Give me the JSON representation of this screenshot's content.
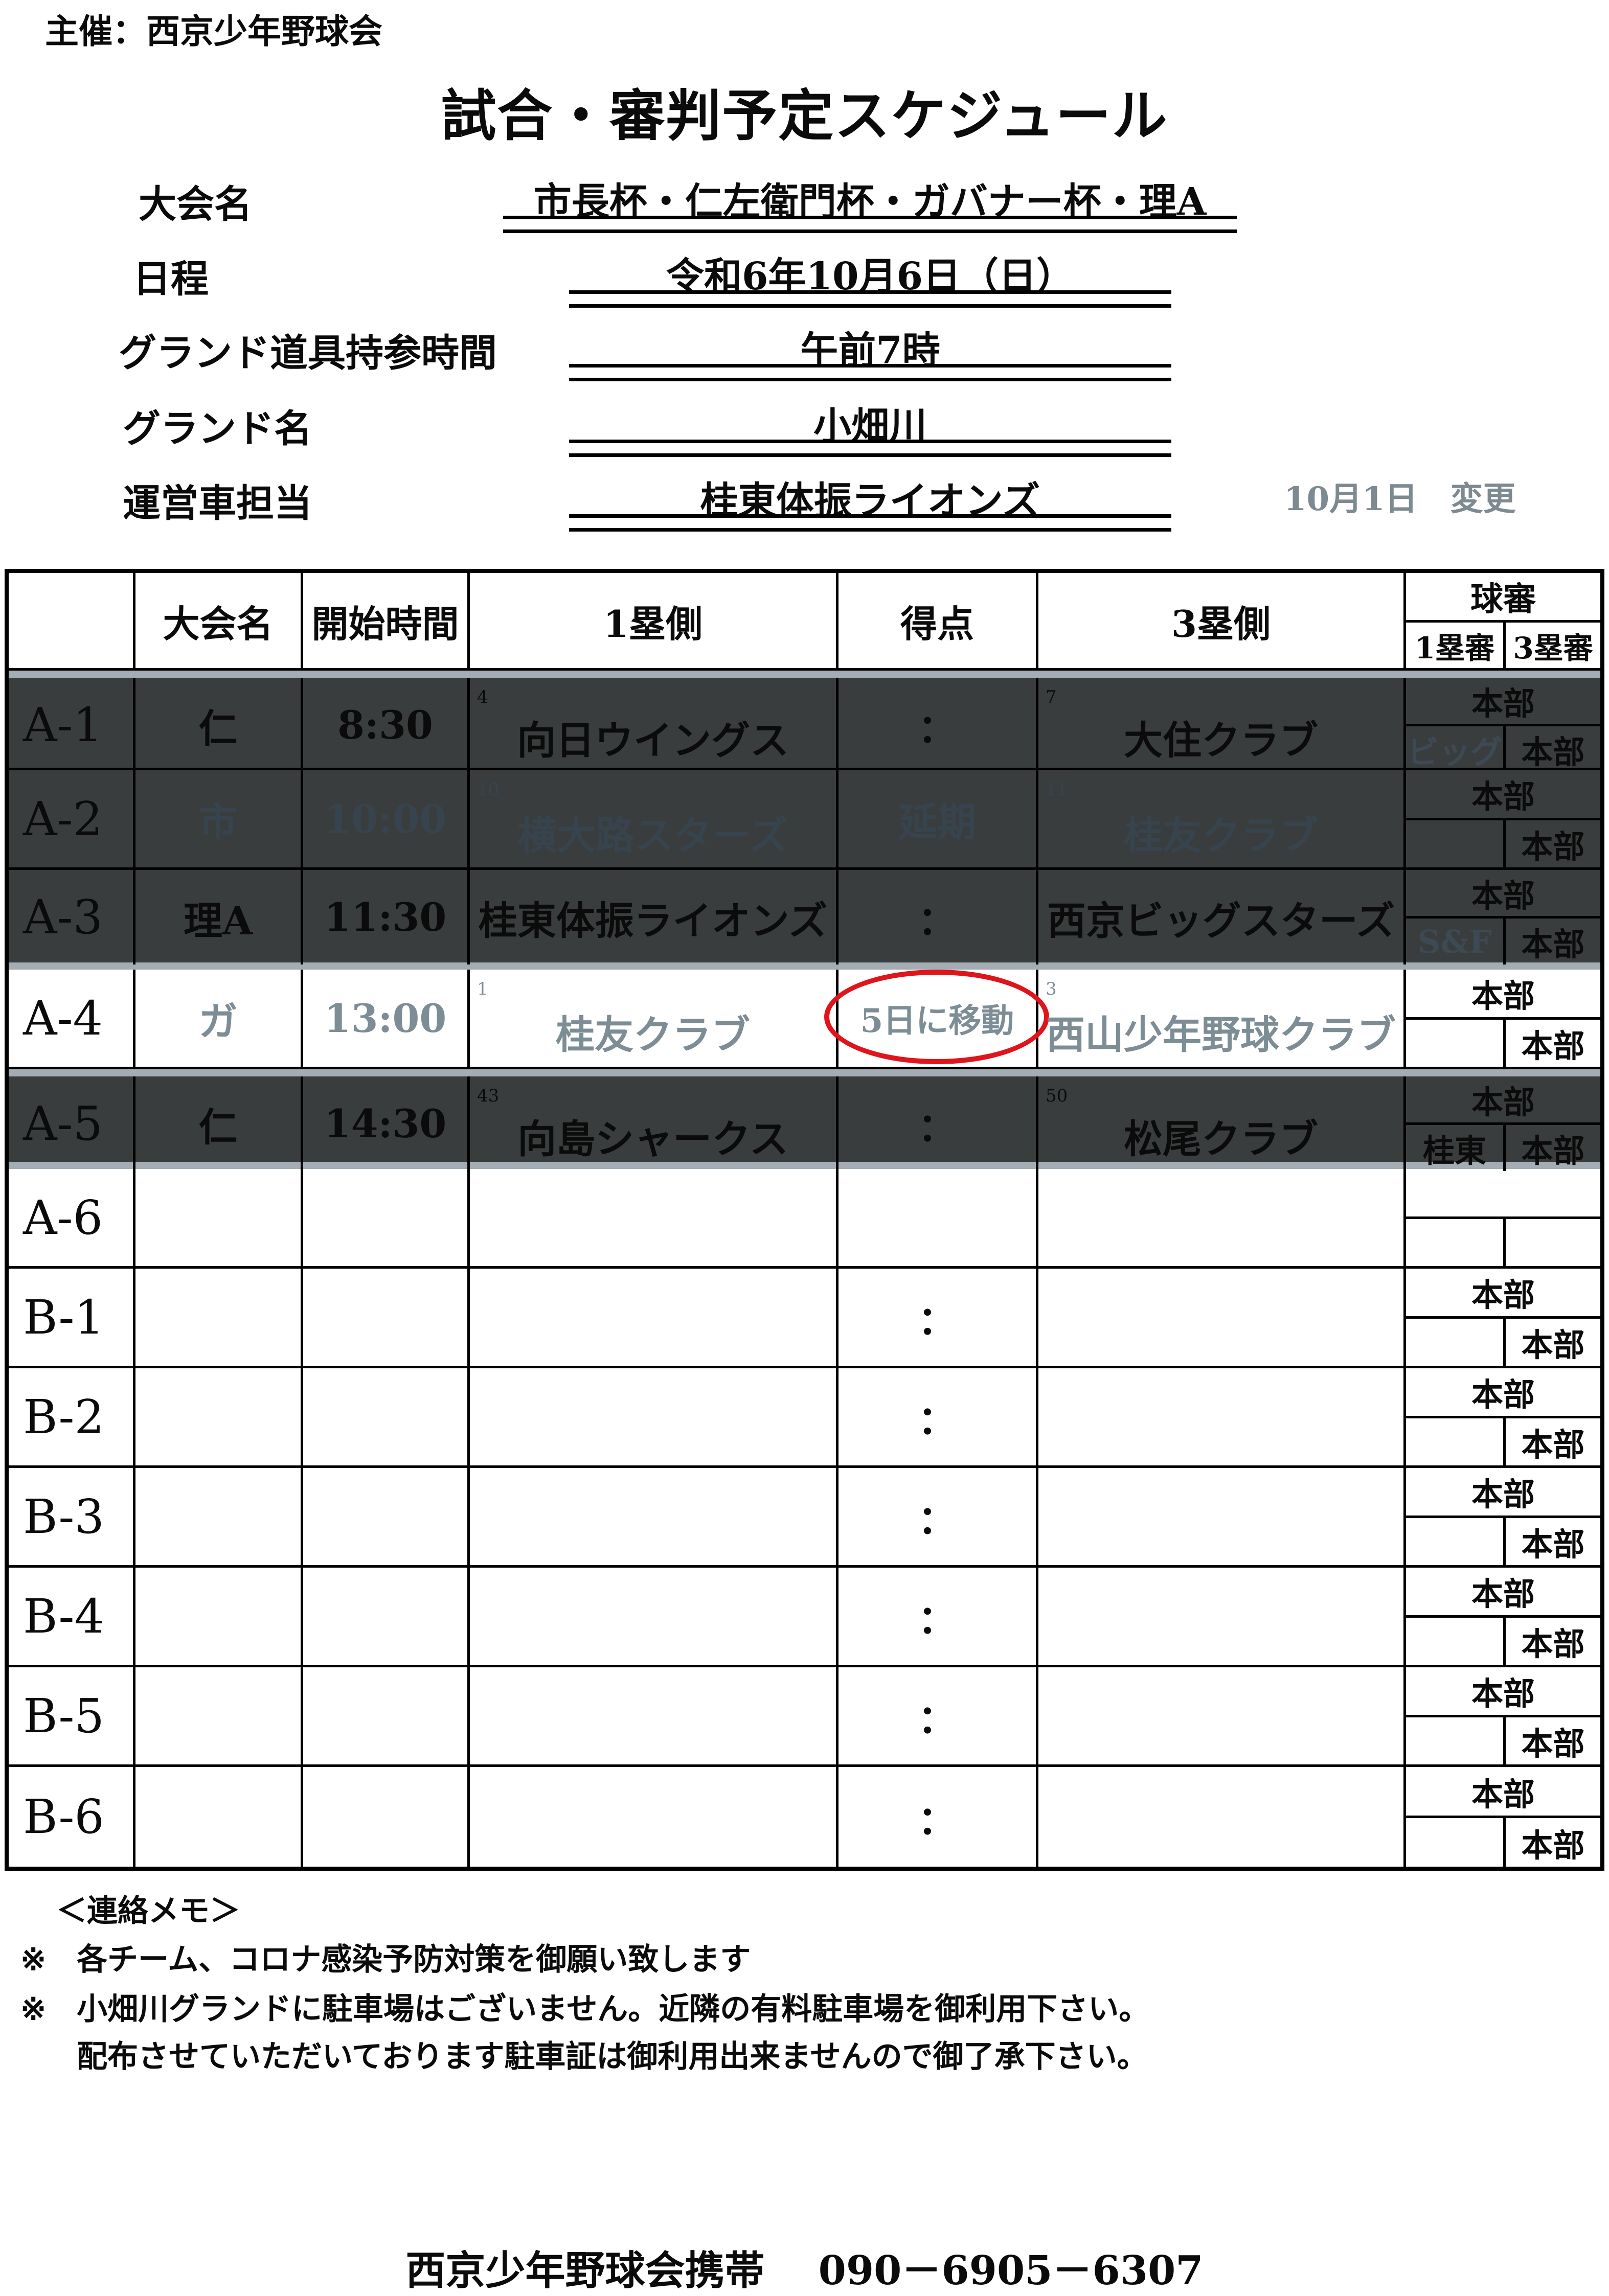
{
  "organizer": "主催：西京少年野球会",
  "title": "試合・審判予定スケジュール",
  "info": [
    {
      "label": "大会名",
      "value": "市長杯・仁左衛門杯・ガバナー杯・理A"
    },
    {
      "label": "日程",
      "value": "令和6年10月6日（日）"
    },
    {
      "label": "グランド道具持参時間",
      "value": "午前7時"
    },
    {
      "label": "グランド名",
      "value": "小畑川"
    },
    {
      "label": "運営車担当",
      "value": "桂東体振ライオンズ"
    }
  ],
  "change_note": "10月1日　変更",
  "table": {
    "headers": {
      "id": "",
      "tournament": "大会名",
      "start_time": "開始時間",
      "first_base_side": "1塁側",
      "score": "得点",
      "third_base_side": "3塁側",
      "umpire": "球審",
      "umpire_1b": "1塁審",
      "umpire_3b": "3塁審"
    },
    "rows": [
      {
        "id": "A-1",
        "tournament": "仁",
        "time": "8:30",
        "team1_seed": "4",
        "team1": "向日ウイングス",
        "score": "：",
        "team3_seed": "7",
        "team3": "大住クラブ",
        "ump_main": "本部",
        "ump_1b": "ビッグ",
        "ump_3b": "本部",
        "status": "dark"
      },
      {
        "id": "A-2",
        "tournament": "市",
        "time": "10:00",
        "team1_seed": "10",
        "team1": "横大路スターズ",
        "score": "延期",
        "team3_seed": "11",
        "team3": "桂友クラブ",
        "ump_main": "本部",
        "ump_1b": "",
        "ump_3b": "本部",
        "status": "dark-postponed"
      },
      {
        "id": "A-3",
        "tournament": "理A",
        "time": "11:30",
        "team1_seed": "",
        "team1": "桂東体振ライオンズ",
        "score": "：",
        "team3_seed": "",
        "team3": "西京ビッグスターズ",
        "ump_main": "本部",
        "ump_1b": "S&F",
        "ump_3b": "本部",
        "status": "dark"
      },
      {
        "id": "A-4",
        "tournament": "ガ",
        "time": "13:00",
        "team1_seed": "1",
        "team1": "桂友クラブ",
        "score": "5日に移動",
        "team3_seed": "3",
        "team3": "西山少年野球クラブ",
        "ump_main": "本部",
        "ump_1b": "",
        "ump_3b": "本部",
        "status": "moved"
      },
      {
        "id": "A-5",
        "tournament": "仁",
        "time": "14:30",
        "team1_seed": "43",
        "team1": "向島シャークス",
        "score": "：",
        "team3_seed": "50",
        "team3": "松尾クラブ",
        "ump_main": "本部",
        "ump_1b": "桂東",
        "ump_3b": "本部",
        "status": "dark"
      },
      {
        "id": "A-6",
        "tournament": "",
        "time": "",
        "team1_seed": "",
        "team1": "",
        "score": "",
        "team3_seed": "",
        "team3": "",
        "ump_main": "",
        "ump_1b": "",
        "ump_3b": "",
        "status": "plain"
      },
      {
        "id": "B-1",
        "tournament": "",
        "time": "",
        "team1_seed": "",
        "team1": "",
        "score": "：",
        "team3_seed": "",
        "team3": "",
        "ump_main": "本部",
        "ump_1b": "",
        "ump_3b": "本部",
        "status": "plain"
      },
      {
        "id": "B-2",
        "tournament": "",
        "time": "",
        "team1_seed": "",
        "team1": "",
        "score": "：",
        "team3_seed": "",
        "team3": "",
        "ump_main": "本部",
        "ump_1b": "",
        "ump_3b": "本部",
        "status": "plain"
      },
      {
        "id": "B-3",
        "tournament": "",
        "time": "",
        "team1_seed": "",
        "team1": "",
        "score": "：",
        "team3_seed": "",
        "team3": "",
        "ump_main": "本部",
        "ump_1b": "",
        "ump_3b": "本部",
        "status": "plain"
      },
      {
        "id": "B-4",
        "tournament": "",
        "time": "",
        "team1_seed": "",
        "team1": "",
        "score": "：",
        "team3_seed": "",
        "team3": "",
        "ump_main": "本部",
        "ump_1b": "",
        "ump_3b": "本部",
        "status": "plain"
      },
      {
        "id": "B-5",
        "tournament": "",
        "time": "",
        "team1_seed": "",
        "team1": "",
        "score": "：",
        "team3_seed": "",
        "team3": "",
        "ump_main": "本部",
        "ump_1b": "",
        "ump_3b": "本部",
        "status": "plain"
      },
      {
        "id": "B-6",
        "tournament": "",
        "time": "",
        "team1_seed": "",
        "team1": "",
        "score": "：",
        "team3_seed": "",
        "team3": "",
        "ump_main": "本部",
        "ump_1b": "",
        "ump_3b": "本部",
        "status": "plain"
      }
    ]
  },
  "notes": {
    "title": "＜連絡メモ＞",
    "mark": "※",
    "items": [
      "各チーム、コロナ感染予防対策を御願い致します",
      "小畑川グランドに駐車場はございません。近隣の有料駐車場を御利用下さい。"
    ],
    "continuation": "配布させていただいております駐車証は御利用出来ませんので御了承下さい。"
  },
  "contact": "西京少年野球会携帯　 090－6905－6307",
  "colors": {
    "dark_row": "#3a3d3e",
    "separator": "#a3adb3",
    "moved_text": "#7d8d96",
    "circle": "#e0141b"
  }
}
